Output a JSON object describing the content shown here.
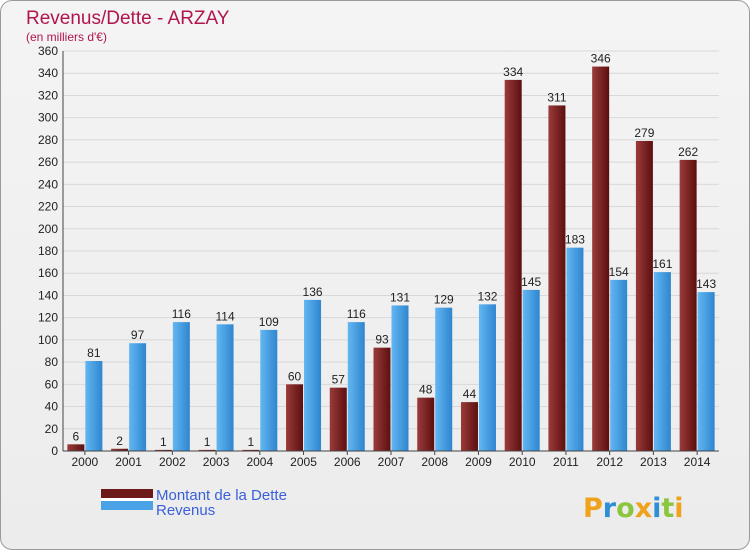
{
  "chart_data": {
    "type": "bar",
    "title": "Revenus/Dette - ARZAY",
    "subtitle": "(en milliers d'€)",
    "categories": [
      "2000",
      "2001",
      "2002",
      "2003",
      "2004",
      "2005",
      "2006",
      "2007",
      "2008",
      "2009",
      "2010",
      "2011",
      "2012",
      "2013",
      "2014"
    ],
    "series": [
      {
        "name": "Montant de la Dette",
        "color": "#6e1a1a",
        "values": [
          6,
          2,
          1,
          1,
          1,
          60,
          57,
          93,
          48,
          44,
          334,
          311,
          346,
          279,
          262
        ]
      },
      {
        "name": "Revenus",
        "color": "#4aa3e6",
        "values": [
          81,
          97,
          116,
          114,
          109,
          136,
          116,
          131,
          129,
          132,
          145,
          183,
          154,
          161,
          143
        ]
      }
    ],
    "ylim": [
      0,
      360
    ],
    "ytick_step": 20,
    "grid": true,
    "legend_position": "bottom-left"
  },
  "brand": {
    "logo_letters": [
      "P",
      "r",
      "o",
      "x",
      "i",
      "t",
      "i"
    ],
    "logo_colors": [
      "#f0a21c",
      "#2f8fd6",
      "#8cc63f",
      "#f0a21c",
      "#2f8fd6",
      "#8cc63f",
      "#f0a21c"
    ]
  }
}
